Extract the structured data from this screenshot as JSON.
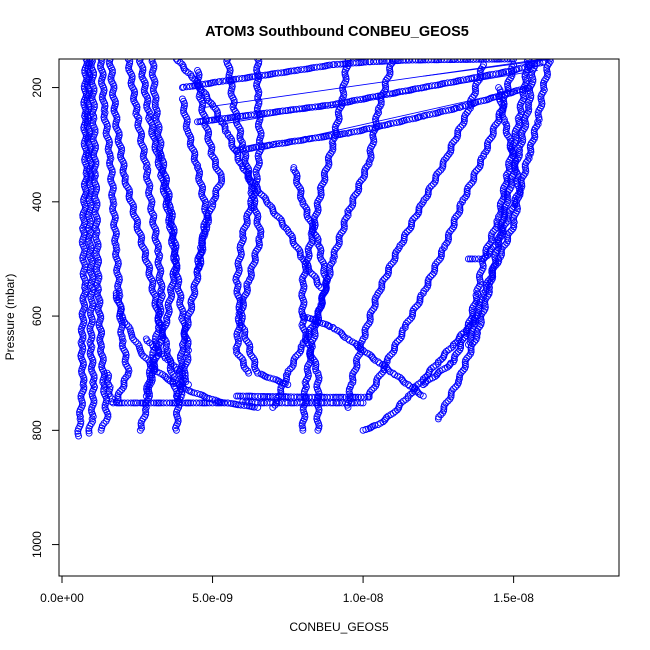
{
  "chart_data": {
    "type": "scatter",
    "title": "ATOM3 Southbound CONBEU_GEOS5",
    "xlabel": "CONBEU_GEOS5",
    "ylabel": "Pressure (mbar)",
    "xlim": [
      -1e-10,
      1.85e-08
    ],
    "ylim": [
      1055,
      150
    ],
    "y_reversed": true,
    "x_ticks": [
      0,
      5e-09,
      1e-08,
      1.5e-08
    ],
    "x_tick_labels": [
      "0.0e+00",
      "5.0e-09",
      "1.0e-08",
      "1.5e-08"
    ],
    "y_ticks": [
      200,
      400,
      600,
      800,
      1000
    ],
    "y_tick_labels": [
      "200",
      "400",
      "600",
      "800",
      "1000"
    ],
    "grid": false,
    "legend": "none",
    "marker": "open-circle",
    "color": "#0000ff",
    "series": [
      {
        "x": [
          8e-10,
          7.5e-10,
          8e-10,
          7e-10,
          7.5e-10,
          6.5e-10,
          7e-10,
          6e-10,
          5.5e-10
        ],
        "y": [
          150,
          250,
          350,
          450,
          550,
          650,
          720,
          780,
          810
        ]
      },
      {
        "x": [
          9e-10,
          8.5e-10,
          9.5e-10,
          9e-10,
          1e-09,
          9.5e-10,
          1.05e-09,
          1e-09,
          9e-10
        ],
        "y": [
          150,
          250,
          350,
          450,
          550,
          650,
          720,
          780,
          805
        ]
      },
      {
        "x": [
          1e-09,
          1.05e-09,
          1.1e-09,
          1.15e-09,
          1.2e-09,
          1.3e-09,
          1.4e-09,
          1.5e-09,
          1.3e-09
        ],
        "y": [
          150,
          250,
          350,
          450,
          550,
          650,
          720,
          780,
          800
        ]
      },
      {
        "x": [
          1.6e-09,
          1.8e-09,
          2.1e-09,
          2.5e-09,
          2.9e-09,
          3.2e-09,
          3.5e-09,
          3.7e-09,
          3.8e-09
        ],
        "y": [
          150,
          260,
          360,
          440,
          520,
          600,
          660,
          710,
          740
        ]
      },
      {
        "x": [
          2.6e-09,
          2.9e-09,
          3.3e-09,
          3.6e-09,
          3.8e-09,
          4e-09,
          4.2e-09,
          4e-09,
          3.9e-09
        ],
        "y": [
          150,
          250,
          350,
          440,
          520,
          600,
          660,
          720,
          750
        ]
      },
      {
        "x": [
          3e-09,
          3.1e-09,
          3.3e-09,
          3.6e-09,
          3.8e-09,
          3.5e-09,
          3e-09,
          2.8e-09,
          2.6e-09
        ],
        "y": [
          150,
          230,
          320,
          410,
          500,
          600,
          700,
          760,
          800
        ]
      },
      {
        "x": [
          4e-09,
          4.2e-09,
          4.5e-09,
          4.8e-09,
          4.6e-09,
          4.3e-09,
          4e-09,
          3.9e-09,
          3.8e-09
        ],
        "y": [
          220,
          280,
          340,
          420,
          500,
          580,
          650,
          720,
          800
        ]
      },
      {
        "x": [
          2.2e-09,
          2.5e-09,
          2.8e-09,
          3e-09,
          3.2e-09,
          3.3e-09,
          3.2e-09,
          3e-09,
          2.8e-09
        ],
        "y": [
          150,
          250,
          340,
          420,
          490,
          560,
          620,
          680,
          740
        ]
      },
      {
        "x": [
          1.3e-09,
          1.4e-09,
          1.6e-09,
          1.7e-09,
          1.8e-09,
          1.9e-09,
          2e-09,
          2.2e-09,
          1.8e-09
        ],
        "y": [
          150,
          240,
          320,
          400,
          480,
          560,
          640,
          700,
          750
        ]
      },
      {
        "x": [
          1.8e-09,
          2e-09,
          2.3e-09,
          2.6e-09,
          3e-09,
          3.5e-09,
          4.2e-09,
          5.2e-09,
          6.5e-09
        ],
        "y": [
          560,
          600,
          630,
          660,
          690,
          710,
          730,
          750,
          760
        ]
      },
      {
        "x": [
          5.5e-09,
          5.7e-09,
          6e-09,
          6.3e-09,
          6.6e-09,
          6.2e-09,
          5.9e-09,
          5.8e-09,
          6.2e-09
        ],
        "y": [
          150,
          230,
          300,
          380,
          460,
          540,
          600,
          660,
          700
        ]
      },
      {
        "x": [
          7.7e-09,
          8e-09,
          8.5e-09,
          8.8e-09,
          8.5e-09,
          8e-09,
          7.5e-09,
          7.2e-09,
          7e-09
        ],
        "y": [
          340,
          400,
          470,
          540,
          600,
          650,
          700,
          740,
          760
        ]
      },
      {
        "x": [
          9.5e-09,
          9.3e-09,
          9e-09,
          8.6e-09,
          8.3e-09,
          8e-09,
          8e-09,
          8.5e-09,
          8.5e-09
        ],
        "y": [
          150,
          220,
          300,
          380,
          460,
          540,
          620,
          700,
          800
        ]
      },
      {
        "x": [
          6.5e-09,
          6.5e-09,
          6.6e-09,
          6.4e-09,
          6e-09,
          5.8e-09,
          6e-09,
          6.5e-09,
          7.5e-09
        ],
        "y": [
          150,
          220,
          300,
          380,
          460,
          540,
          620,
          700,
          720
        ]
      },
      {
        "x": [
          1.1e-08,
          1.05e-08,
          1.02e-08,
          9.5e-09,
          9e-09,
          8.6e-09,
          8.3e-09,
          8.1e-09,
          8e-09
        ],
        "y": [
          150,
          240,
          330,
          420,
          500,
          580,
          650,
          720,
          800
        ]
      },
      {
        "x": [
          1.4e-08,
          1.35e-08,
          1.28e-08,
          1.2e-08,
          1.12e-08,
          1.05e-08,
          1e-08,
          9.6e-09,
          9.5e-09
        ],
        "y": [
          160,
          240,
          320,
          400,
          480,
          560,
          640,
          720,
          760
        ]
      },
      {
        "x": [
          1.5e-08,
          1.46e-08,
          1.4e-08,
          1.33e-08,
          1.27e-08,
          1.2e-08,
          1.14e-08,
          1.08e-08,
          1.02e-08
        ],
        "y": [
          160,
          240,
          320,
          400,
          480,
          560,
          620,
          680,
          740
        ]
      },
      {
        "x": [
          1.55e-08,
          1.52e-08,
          1.48e-08,
          1.45e-08,
          1.4e-08,
          1.38e-08,
          1.35e-08,
          1.3e-08,
          1.2e-08
        ],
        "y": [
          150,
          250,
          350,
          430,
          500,
          560,
          620,
          680,
          720
        ]
      },
      {
        "x": [
          1.57e-08,
          1.55e-08,
          1.52e-08,
          1.48e-08,
          1.45e-08,
          1.42e-08,
          1.38e-08,
          1.32e-08,
          1.25e-08
        ],
        "y": [
          150,
          230,
          310,
          390,
          470,
          550,
          630,
          710,
          780
        ]
      },
      {
        "x": [
          1.45e-08,
          1.47e-08,
          1.5e-08,
          1.52e-08,
          1.5e-08,
          1.45e-08,
          1.4e-08,
          1.37e-08,
          1.35e-08
        ],
        "y": [
          200,
          260,
          320,
          380,
          440,
          500,
          560,
          610,
          650
        ]
      },
      {
        "x": [
          1.62e-08,
          1.6e-08,
          1.58e-08,
          1.55e-08,
          1.52e-08,
          1.48e-08,
          1.45e-08,
          1.4e-08,
          1.35e-08
        ],
        "y": [
          150,
          200,
          260,
          320,
          380,
          430,
          470,
          500,
          500
        ]
      },
      {
        "x": [
          4.5e-09,
          6e-09,
          7.5e-09,
          9e-09,
          1.05e-08,
          1.2e-08,
          1.35e-08,
          1.5e-08,
          1.6e-08
        ],
        "y": [
          260,
          250,
          240,
          230,
          215,
          200,
          185,
          170,
          155
        ]
      },
      {
        "x": [
          5.8e-09,
          7e-09,
          8.2e-09,
          9.5e-09,
          1.08e-08,
          1.2e-08,
          1.32e-08,
          1.45e-08,
          1.55e-08
        ],
        "y": [
          310,
          300,
          290,
          280,
          265,
          250,
          235,
          215,
          200
        ]
      },
      {
        "x": [
          4e-09,
          5.2e-09,
          6.5e-09,
          7.8e-09,
          9e-09,
          1.02e-08,
          1.15e-08,
          1.3e-08,
          1.5e-08
        ],
        "y": [
          200,
          190,
          180,
          170,
          160,
          155,
          152,
          151,
          150
        ]
      },
      {
        "x": [
          3.8e-09,
          4.3e-09,
          5e-09,
          5.5e-09,
          6e-09,
          6.8e-09,
          7.5e-09,
          8e-09,
          8.6e-09
        ],
        "y": [
          150,
          180,
          230,
          280,
          340,
          400,
          450,
          500,
          550
        ]
      },
      {
        "x": [
          4.5e-09,
          4.6e-09,
          4.8e-09,
          5e-09,
          5.3e-09,
          5e-09,
          4.8e-09,
          4.6e-09,
          4.5e-09
        ],
        "y": [
          170,
          220,
          270,
          320,
          360,
          400,
          440,
          480,
          520
        ]
      },
      {
        "x": [
          1.5e-09,
          1.55e-09,
          1.6e-09,
          1.65e-09,
          1.7e-09,
          2.5e-09,
          4e-09,
          5e-09,
          5.5e-09
        ],
        "y": [
          700,
          720,
          740,
          750,
          752,
          752,
          752,
          752,
          752
        ]
      },
      {
        "x": [
          6e-09,
          6.5e-09,
          7e-09,
          7.5e-09,
          8e-09,
          8.5e-09,
          9e-09,
          9.5e-09,
          1e-08
        ],
        "y": [
          750,
          752,
          752,
          752,
          752,
          752,
          752,
          752,
          752
        ]
      },
      {
        "x": [
          5.8e-09,
          6.2e-09,
          6.8e-09,
          7.4e-09,
          8e-09,
          8.6e-09,
          9.2e-09,
          9.7e-09,
          1.02e-08
        ],
        "y": [
          740,
          740,
          741,
          741,
          742,
          742,
          742,
          742,
          742
        ]
      },
      {
        "x": [
          2.8e-09,
          3e-09,
          3.2e-09,
          3.4e-09,
          3.6e-09,
          3.8e-09,
          4e-09,
          4.1e-09,
          4.2e-09
        ],
        "y": [
          640,
          650,
          660,
          670,
          680,
          690,
          700,
          710,
          720
        ]
      },
      {
        "x": [
          8e-09,
          8.5e-09,
          9e-09,
          9.5e-09,
          1e-08,
          1.05e-08,
          1.1e-08,
          1.15e-08,
          1.2e-08
        ],
        "y": [
          600,
          610,
          620,
          640,
          660,
          680,
          700,
          720,
          740
        ]
      },
      {
        "x": [
          1e-08,
          1.05e-08,
          1.1e-08,
          1.15e-08,
          1.2e-08,
          1.25e-08,
          1.3e-08,
          1.35e-08,
          1.38e-08
        ],
        "y": [
          800,
          790,
          770,
          740,
          710,
          680,
          650,
          620,
          600
        ]
      }
    ],
    "lines": [
      {
        "x": [
          4.7e-09,
          1.6e-08
        ],
        "y": [
          235,
          150
        ]
      },
      {
        "x": [
          5.2e-09,
          1.58e-08
        ],
        "y": [
          265,
          170
        ]
      },
      {
        "x": [
          1.2e-08,
          1.63e-08
        ],
        "y": [
          180,
          150
        ]
      },
      {
        "x": [
          7e-09,
          1.55e-08
        ],
        "y": [
          300,
          200
        ]
      }
    ]
  }
}
